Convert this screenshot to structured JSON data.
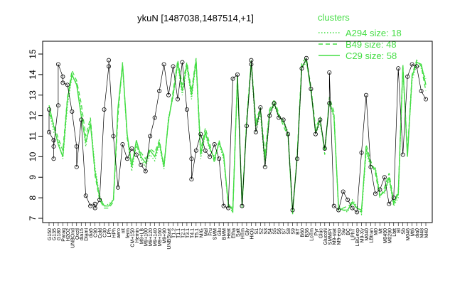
{
  "chart_data": {
    "type": "line",
    "title": "ykuN [1487038,1487514,+1]",
    "xlabel": "",
    "ylabel": "",
    "ylim": [
      7,
      15
    ],
    "y_ticks": [
      7,
      8,
      9,
      10,
      11,
      12,
      13,
      14,
      15
    ],
    "grid": false,
    "legend_position": "top-right",
    "legend": {
      "title": "clusters",
      "color": "#44dd44",
      "entries": [
        {
          "label": "A294 size: 18",
          "style": "dotted"
        },
        {
          "label": "B49 size: 48",
          "style": "dashed"
        },
        {
          "label": "C29 size: 58",
          "style": "solid"
        }
      ]
    },
    "x_tick_labels": [
      "G150",
      "G135",
      "G180",
      "Paraq",
      "H2O2",
      "UNBOnd",
      "Oxctl",
      "dia15",
      "Diami",
      "dia5",
      "C90",
      "Cold",
      "C30",
      "LPh",
      "HPh",
      "aero",
      "nit",
      "ferm",
      "CM+150",
      "Hemin",
      "M9+LB",
      "M9+100",
      "M9+120",
      "M9+140",
      "M9+160",
      "M9+90",
      "UNBStart",
      "T1.2",
      "T1.1",
      "T2.1",
      "T3.1",
      "T4.1",
      "T5.1",
      "M/G",
      "Mal",
      "Fru",
      "SMM",
      "Glu",
      "BMM",
      "Heat",
      "Etha",
      "Salt",
      "HTm",
      "Gly",
      "HiOs",
      "S1",
      "S2",
      "S3",
      "S4",
      "S5",
      "S6",
      "S7",
      "S8",
      "S9",
      "BT",
      "B60",
      "B36",
      "LoTm",
      "Pyr",
      "Gluc",
      "GlucoN",
      "SMMPr",
      "M9-stat",
      "M9-exp",
      "Sw",
      "BC",
      "LPhT",
      "LBGexp",
      "M9-Xy",
      "M040",
      "LBtran",
      "M0",
      "Mt",
      "M0490",
      "M0290",
      "Lbtt",
      "Bl",
      "Sb",
      "M046",
      "Mt6",
      "dia0",
      "M48",
      "M40"
    ],
    "series": [
      {
        "style": "dotted",
        "values": [
          12.3,
          11.2,
          10.8,
          9.9,
          12.5,
          13.9,
          13.6,
          12.2,
          10.5,
          11.8,
          9.5,
          8.1,
          7.6,
          7.7,
          7.9,
          12.3,
          14.4,
          11.0,
          9.3,
          10.6,
          9.9,
          9.5,
          10.1,
          9.8,
          10.6,
          9.4,
          11.9,
          12.9,
          14.5,
          13.0,
          14.4,
          12.8,
          14.6,
          9.9,
          11.1,
          10.3,
          10.0,
          10.6,
          9.9,
          7.7,
          7.5,
          13.8,
          7.7,
          11.5,
          14.5,
          11.2,
          12.1,
          9.5,
          12.0,
          12.5,
          11.9,
          11.8,
          11.2,
          7.4,
          9.9,
          14.3,
          14.6,
          13.3,
          11.1,
          11.6,
          10.4,
          12.6,
          11.9,
          7.6,
          7.4,
          7.3,
          7.9,
          7.6,
          7.2,
          10.2,
          9.5,
          9.5,
          8.2,
          8.2,
          8.9,
          7.6,
          8.0,
          14.3,
          10.1,
          13.7,
          14.5,
          14.3,
          13.8
        ]
      },
      {
        "style": "dashed",
        "values": [
          12.1,
          11.6,
          10.9,
          10.3,
          12.9,
          14.2,
          13.7,
          12.6,
          11.0,
          11.9,
          9.1,
          7.9,
          7.5,
          7.5,
          7.8,
          12.0,
          14.6,
          10.9,
          9.7,
          10.5,
          10.2,
          9.9,
          10.4,
          10.2,
          10.8,
          9.6,
          11.7,
          13.2,
          14.7,
          13.5,
          14.6,
          13.2,
          14.8,
          10.3,
          11.4,
          10.6,
          9.7,
          10.8,
          10.0,
          7.6,
          7.3,
          14.0,
          7.5,
          11.8,
          14.7,
          11.7,
          12.4,
          10.1,
          12.3,
          12.8,
          12.1,
          11.5,
          11.0,
          7.2,
          10.1,
          14.6,
          14.8,
          13.4,
          11.4,
          11.9,
          10.1,
          12.9,
          12.2,
          7.4,
          7.5,
          7.6,
          7.7,
          7.5,
          7.3,
          10.6,
          9.8,
          9.2,
          8.0,
          8.5,
          9.2,
          7.8,
          8.3,
          14.5,
          10.2,
          14.0,
          14.7,
          14.4,
          13.2
        ]
      },
      {
        "style": "solid",
        "values": [
          12.5,
          11.5,
          10.6,
          10.0,
          12.8,
          14.0,
          13.5,
          12.0,
          10.7,
          11.6,
          9.3,
          8.0,
          7.6,
          7.6,
          7.9,
          12.4,
          14.5,
          11.1,
          9.5,
          10.8,
          10.0,
          9.7,
          10.3,
          10.0,
          10.7,
          9.5,
          11.8,
          13.0,
          14.6,
          13.2,
          14.5,
          13.0,
          14.7,
          10.1,
          11.2,
          10.4,
          9.9,
          10.7,
          10.1,
          7.7,
          7.4,
          13.9,
          7.6,
          11.6,
          14.6,
          11.5,
          12.3,
          9.8,
          12.2,
          12.6,
          12.0,
          11.7,
          11.1,
          7.3,
          10.0,
          14.4,
          14.7,
          13.2,
          11.2,
          11.8,
          10.3,
          12.7,
          12.0,
          7.5,
          7.4,
          7.4,
          7.8,
          7.5,
          7.4,
          10.4,
          9.6,
          9.4,
          8.1,
          8.3,
          9.0,
          7.7,
          8.2,
          14.4,
          10.0,
          13.9,
          14.6,
          14.5,
          13.5
        ]
      }
    ],
    "points": [
      {
        "x": 0,
        "y": 12.3
      },
      {
        "x": 0,
        "y": 11.2
      },
      {
        "x": 1,
        "y": 10.8
      },
      {
        "x": 1,
        "y": 9.9
      },
      {
        "x": 1,
        "y": 10.5
      },
      {
        "x": 2,
        "y": 12.5
      },
      {
        "x": 2,
        "y": 14.5
      },
      {
        "x": 3,
        "y": 13.9
      },
      {
        "x": 3,
        "y": 13.6
      },
      {
        "x": 4,
        "y": 13.5
      },
      {
        "x": 5,
        "y": 12.2
      },
      {
        "x": 6,
        "y": 10.5
      },
      {
        "x": 6,
        "y": 9.5
      },
      {
        "x": 7,
        "y": 11.8
      },
      {
        "x": 8,
        "y": 8.1
      },
      {
        "x": 9,
        "y": 7.6
      },
      {
        "x": 10,
        "y": 7.7
      },
      {
        "x": 10,
        "y": 7.5
      },
      {
        "x": 11,
        "y": 7.9
      },
      {
        "x": 12,
        "y": 12.3
      },
      {
        "x": 13,
        "y": 14.4
      },
      {
        "x": 13,
        "y": 14.7
      },
      {
        "x": 14,
        "y": 11.0
      },
      {
        "x": 15,
        "y": 8.5
      },
      {
        "x": 16,
        "y": 10.6
      },
      {
        "x": 17,
        "y": 9.9
      },
      {
        "x": 18,
        "y": 10.4
      },
      {
        "x": 19,
        "y": 10.1
      },
      {
        "x": 20,
        "y": 9.6
      },
      {
        "x": 21,
        "y": 9.3
      },
      {
        "x": 22,
        "y": 11.0
      },
      {
        "x": 23,
        "y": 11.9
      },
      {
        "x": 24,
        "y": 13.2
      },
      {
        "x": 25,
        "y": 14.5
      },
      {
        "x": 26,
        "y": 13.0
      },
      {
        "x": 27,
        "y": 14.4
      },
      {
        "x": 28,
        "y": 12.8
      },
      {
        "x": 29,
        "y": 14.6
      },
      {
        "x": 30,
        "y": 12.3
      },
      {
        "x": 31,
        "y": 9.9
      },
      {
        "x": 31,
        "y": 8.9
      },
      {
        "x": 32,
        "y": 10.3
      },
      {
        "x": 33,
        "y": 11.1
      },
      {
        "x": 34,
        "y": 10.3
      },
      {
        "x": 35,
        "y": 10.0
      },
      {
        "x": 36,
        "y": 10.6
      },
      {
        "x": 37,
        "y": 9.9
      },
      {
        "x": 38,
        "y": 7.6
      },
      {
        "x": 39,
        "y": 7.5
      },
      {
        "x": 40,
        "y": 13.8
      },
      {
        "x": 41,
        "y": 14.0
      },
      {
        "x": 42,
        "y": 7.6
      },
      {
        "x": 43,
        "y": 11.5
      },
      {
        "x": 44,
        "y": 14.5
      },
      {
        "x": 44,
        "y": 14.7
      },
      {
        "x": 45,
        "y": 11.2
      },
      {
        "x": 46,
        "y": 12.4
      },
      {
        "x": 47,
        "y": 9.5
      },
      {
        "x": 48,
        "y": 12.0
      },
      {
        "x": 49,
        "y": 12.6
      },
      {
        "x": 50,
        "y": 11.9
      },
      {
        "x": 51,
        "y": 11.8
      },
      {
        "x": 52,
        "y": 11.1
      },
      {
        "x": 53,
        "y": 7.4
      },
      {
        "x": 54,
        "y": 9.9
      },
      {
        "x": 55,
        "y": 14.3
      },
      {
        "x": 56,
        "y": 14.8
      },
      {
        "x": 57,
        "y": 13.3
      },
      {
        "x": 58,
        "y": 11.1
      },
      {
        "x": 59,
        "y": 11.8
      },
      {
        "x": 60,
        "y": 10.4
      },
      {
        "x": 61,
        "y": 12.6
      },
      {
        "x": 61,
        "y": 14.1
      },
      {
        "x": 62,
        "y": 7.6
      },
      {
        "x": 63,
        "y": 7.4
      },
      {
        "x": 64,
        "y": 8.3
      },
      {
        "x": 65,
        "y": 7.9
      },
      {
        "x": 66,
        "y": 7.5
      },
      {
        "x": 67,
        "y": 7.3
      },
      {
        "x": 68,
        "y": 10.2
      },
      {
        "x": 69,
        "y": 13.0
      },
      {
        "x": 70,
        "y": 9.5
      },
      {
        "x": 71,
        "y": 8.2
      },
      {
        "x": 72,
        "y": 8.4
      },
      {
        "x": 73,
        "y": 9.0
      },
      {
        "x": 74,
        "y": 7.7
      },
      {
        "x": 75,
        "y": 8.0
      },
      {
        "x": 76,
        "y": 14.3
      },
      {
        "x": 77,
        "y": 10.1
      },
      {
        "x": 78,
        "y": 13.9
      },
      {
        "x": 79,
        "y": 14.5
      },
      {
        "x": 80,
        "y": 14.4
      },
      {
        "x": 81,
        "y": 13.2
      },
      {
        "x": 82,
        "y": 12.8
      }
    ]
  }
}
